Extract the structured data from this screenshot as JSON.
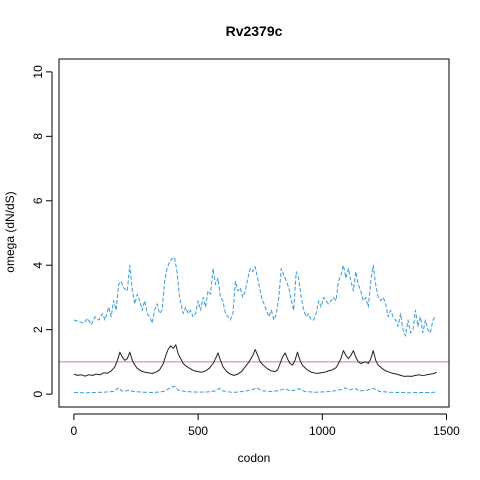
{
  "chart_data": {
    "type": "line",
    "title": "Rv2379c",
    "xlabel": "codon",
    "ylabel": "omega (dN/dS)",
    "xlim": [
      -60,
      1510
    ],
    "ylim": [
      -0.4,
      10.4
    ],
    "xticks": [
      0,
      500,
      1000,
      1500
    ],
    "yticks": [
      0,
      2,
      4,
      6,
      8,
      10
    ],
    "grid": false,
    "legend": "none",
    "reference_line": {
      "y": 1,
      "color": "#cc79a7"
    },
    "series": [
      {
        "style": "dashed",
        "color": "#3a9bd5",
        "points": [
          [
            0,
            2.3
          ],
          [
            20,
            2.25
          ],
          [
            40,
            2.2
          ],
          [
            55,
            2.35
          ],
          [
            70,
            2.15
          ],
          [
            85,
            2.4
          ],
          [
            100,
            2.3
          ],
          [
            115,
            2.5
          ],
          [
            125,
            2.3
          ],
          [
            140,
            2.7
          ],
          [
            150,
            2.4
          ],
          [
            160,
            2.9
          ],
          [
            170,
            2.6
          ],
          [
            180,
            3.4
          ],
          [
            190,
            3.5
          ],
          [
            200,
            3.3
          ],
          [
            215,
            3.2
          ],
          [
            225,
            4.0
          ],
          [
            235,
            3.2
          ],
          [
            245,
            2.8
          ],
          [
            255,
            3.1
          ],
          [
            265,
            2.9
          ],
          [
            275,
            2.6
          ],
          [
            285,
            2.9
          ],
          [
            295,
            2.5
          ],
          [
            305,
            2.4
          ],
          [
            315,
            2.2
          ],
          [
            325,
            2.6
          ],
          [
            335,
            2.8
          ],
          [
            345,
            2.5
          ],
          [
            355,
            2.6
          ],
          [
            365,
            3.5
          ],
          [
            375,
            3.9
          ],
          [
            385,
            4.1
          ],
          [
            395,
            4.2
          ],
          [
            405,
            4.25
          ],
          [
            415,
            3.8
          ],
          [
            425,
            3.0
          ],
          [
            440,
            2.5
          ],
          [
            450,
            2.7
          ],
          [
            460,
            2.5
          ],
          [
            470,
            2.6
          ],
          [
            480,
            2.4
          ],
          [
            490,
            2.5
          ],
          [
            500,
            2.9
          ],
          [
            510,
            2.6
          ],
          [
            520,
            3.0
          ],
          [
            530,
            2.7
          ],
          [
            540,
            3.2
          ],
          [
            550,
            3.1
          ],
          [
            560,
            3.9
          ],
          [
            570,
            3.4
          ],
          [
            580,
            3.6
          ],
          [
            590,
            3.0
          ],
          [
            600,
            2.9
          ],
          [
            610,
            2.5
          ],
          [
            620,
            2.4
          ],
          [
            630,
            2.3
          ],
          [
            640,
            2.5
          ],
          [
            650,
            3.5
          ],
          [
            660,
            3.2
          ],
          [
            670,
            3.3
          ],
          [
            680,
            3.0
          ],
          [
            690,
            3.2
          ],
          [
            700,
            3.6
          ],
          [
            710,
            3.9
          ],
          [
            720,
            3.8
          ],
          [
            730,
            3.95
          ],
          [
            745,
            3.4
          ],
          [
            755,
            3.0
          ],
          [
            770,
            2.7
          ],
          [
            785,
            2.4
          ],
          [
            795,
            2.6
          ],
          [
            805,
            2.3
          ],
          [
            815,
            2.5
          ],
          [
            825,
            3.0
          ],
          [
            835,
            3.9
          ],
          [
            845,
            3.7
          ],
          [
            855,
            3.5
          ],
          [
            865,
            3.3
          ],
          [
            875,
            2.9
          ],
          [
            885,
            2.6
          ],
          [
            895,
            3.8
          ],
          [
            905,
            3.6
          ],
          [
            915,
            3.0
          ],
          [
            925,
            2.6
          ],
          [
            935,
            2.4
          ],
          [
            945,
            2.5
          ],
          [
            955,
            2.3
          ],
          [
            965,
            2.3
          ],
          [
            975,
            2.5
          ],
          [
            985,
            2.9
          ],
          [
            995,
            2.7
          ],
          [
            1005,
            3.0
          ],
          [
            1015,
            2.9
          ],
          [
            1025,
            2.8
          ],
          [
            1035,
            2.9
          ],
          [
            1045,
            3.0
          ],
          [
            1055,
            2.9
          ],
          [
            1065,
            3.5
          ],
          [
            1075,
            3.7
          ],
          [
            1085,
            4.0
          ],
          [
            1095,
            3.6
          ],
          [
            1105,
            3.9
          ],
          [
            1115,
            3.5
          ],
          [
            1125,
            3.2
          ],
          [
            1135,
            3.8
          ],
          [
            1145,
            3.4
          ],
          [
            1155,
            3.2
          ],
          [
            1165,
            2.9
          ],
          [
            1175,
            3.0
          ],
          [
            1185,
            2.7
          ],
          [
            1195,
            3.5
          ],
          [
            1205,
            4.0
          ],
          [
            1215,
            3.4
          ],
          [
            1225,
            3.0
          ],
          [
            1235,
            2.9
          ],
          [
            1245,
            3.0
          ],
          [
            1255,
            2.8
          ],
          [
            1265,
            2.4
          ],
          [
            1275,
            2.6
          ],
          [
            1285,
            2.4
          ],
          [
            1295,
            2.3
          ],
          [
            1305,
            2.1
          ],
          [
            1315,
            2.5
          ],
          [
            1325,
            2.0
          ],
          [
            1335,
            1.8
          ],
          [
            1345,
            2.3
          ],
          [
            1355,
            1.9
          ],
          [
            1365,
            2.0
          ],
          [
            1375,
            2.6
          ],
          [
            1385,
            2.1
          ],
          [
            1395,
            2.4
          ],
          [
            1405,
            1.9
          ],
          [
            1415,
            2.3
          ],
          [
            1425,
            2.0
          ],
          [
            1435,
            1.9
          ],
          [
            1445,
            2.3
          ],
          [
            1455,
            2.4
          ]
        ]
      },
      {
        "style": "solid",
        "color": "#222222",
        "points": [
          [
            0,
            0.62
          ],
          [
            15,
            0.58
          ],
          [
            30,
            0.6
          ],
          [
            45,
            0.56
          ],
          [
            60,
            0.6
          ],
          [
            75,
            0.58
          ],
          [
            90,
            0.62
          ],
          [
            105,
            0.6
          ],
          [
            120,
            0.66
          ],
          [
            135,
            0.65
          ],
          [
            150,
            0.72
          ],
          [
            165,
            0.85
          ],
          [
            175,
            1.05
          ],
          [
            185,
            1.3
          ],
          [
            195,
            1.15
          ],
          [
            205,
            1.05
          ],
          [
            215,
            1.1
          ],
          [
            225,
            1.3
          ],
          [
            235,
            1.05
          ],
          [
            245,
            0.9
          ],
          [
            255,
            0.8
          ],
          [
            270,
            0.72
          ],
          [
            285,
            0.68
          ],
          [
            300,
            0.66
          ],
          [
            315,
            0.64
          ],
          [
            330,
            0.68
          ],
          [
            345,
            0.75
          ],
          [
            360,
            0.95
          ],
          [
            370,
            1.2
          ],
          [
            380,
            1.4
          ],
          [
            390,
            1.5
          ],
          [
            400,
            1.42
          ],
          [
            410,
            1.53
          ],
          [
            420,
            1.25
          ],
          [
            430,
            1.1
          ],
          [
            440,
            0.95
          ],
          [
            455,
            0.85
          ],
          [
            470,
            0.78
          ],
          [
            485,
            0.72
          ],
          [
            500,
            0.7
          ],
          [
            515,
            0.68
          ],
          [
            530,
            0.72
          ],
          [
            545,
            0.8
          ],
          [
            560,
            0.95
          ],
          [
            570,
            1.1
          ],
          [
            580,
            1.28
          ],
          [
            590,
            1.05
          ],
          [
            600,
            0.85
          ],
          [
            615,
            0.7
          ],
          [
            630,
            0.62
          ],
          [
            645,
            0.58
          ],
          [
            660,
            0.62
          ],
          [
            675,
            0.7
          ],
          [
            690,
            0.85
          ],
          [
            705,
            1.0
          ],
          [
            720,
            1.2
          ],
          [
            730,
            1.38
          ],
          [
            740,
            1.2
          ],
          [
            750,
            1.0
          ],
          [
            765,
            0.88
          ],
          [
            780,
            0.78
          ],
          [
            795,
            0.72
          ],
          [
            810,
            0.7
          ],
          [
            820,
            0.75
          ],
          [
            830,
            0.95
          ],
          [
            840,
            1.15
          ],
          [
            850,
            1.28
          ],
          [
            860,
            1.1
          ],
          [
            870,
            0.95
          ],
          [
            880,
            0.9
          ],
          [
            890,
            1.05
          ],
          [
            900,
            1.3
          ],
          [
            910,
            1.05
          ],
          [
            920,
            0.9
          ],
          [
            935,
            0.78
          ],
          [
            950,
            0.7
          ],
          [
            965,
            0.66
          ],
          [
            980,
            0.64
          ],
          [
            995,
            0.66
          ],
          [
            1010,
            0.68
          ],
          [
            1025,
            0.72
          ],
          [
            1040,
            0.75
          ],
          [
            1055,
            0.82
          ],
          [
            1065,
            0.95
          ],
          [
            1075,
            1.1
          ],
          [
            1085,
            1.35
          ],
          [
            1095,
            1.2
          ],
          [
            1105,
            1.1
          ],
          [
            1115,
            1.2
          ],
          [
            1125,
            1.35
          ],
          [
            1135,
            1.15
          ],
          [
            1145,
            1.0
          ],
          [
            1155,
            0.95
          ],
          [
            1165,
            0.98
          ],
          [
            1175,
            1.0
          ],
          [
            1185,
            0.95
          ],
          [
            1195,
            1.1
          ],
          [
            1205,
            1.35
          ],
          [
            1215,
            1.05
          ],
          [
            1225,
            0.9
          ],
          [
            1240,
            0.8
          ],
          [
            1255,
            0.72
          ],
          [
            1270,
            0.68
          ],
          [
            1285,
            0.64
          ],
          [
            1300,
            0.62
          ],
          [
            1315,
            0.58
          ],
          [
            1330,
            0.55
          ],
          [
            1345,
            0.56
          ],
          [
            1360,
            0.55
          ],
          [
            1375,
            0.58
          ],
          [
            1390,
            0.6
          ],
          [
            1405,
            0.57
          ],
          [
            1420,
            0.6
          ],
          [
            1435,
            0.62
          ],
          [
            1450,
            0.64
          ],
          [
            1460,
            0.68
          ]
        ]
      },
      {
        "style": "dashed",
        "color": "#3a9bd5",
        "points": [
          [
            0,
            0.05
          ],
          [
            40,
            0.04
          ],
          [
            80,
            0.05
          ],
          [
            120,
            0.06
          ],
          [
            160,
            0.08
          ],
          [
            180,
            0.2
          ],
          [
            190,
            0.12
          ],
          [
            200,
            0.08
          ],
          [
            220,
            0.12
          ],
          [
            240,
            0.08
          ],
          [
            280,
            0.06
          ],
          [
            320,
            0.05
          ],
          [
            360,
            0.08
          ],
          [
            390,
            0.2
          ],
          [
            405,
            0.25
          ],
          [
            420,
            0.12
          ],
          [
            450,
            0.08
          ],
          [
            500,
            0.06
          ],
          [
            540,
            0.07
          ],
          [
            570,
            0.1
          ],
          [
            585,
            0.18
          ],
          [
            600,
            0.1
          ],
          [
            640,
            0.05
          ],
          [
            680,
            0.08
          ],
          [
            720,
            0.14
          ],
          [
            735,
            0.2
          ],
          [
            760,
            0.1
          ],
          [
            800,
            0.08
          ],
          [
            830,
            0.12
          ],
          [
            850,
            0.17
          ],
          [
            870,
            0.1
          ],
          [
            890,
            0.12
          ],
          [
            905,
            0.17
          ],
          [
            930,
            0.08
          ],
          [
            970,
            0.06
          ],
          [
            1010,
            0.07
          ],
          [
            1050,
            0.1
          ],
          [
            1080,
            0.15
          ],
          [
            1090,
            0.2
          ],
          [
            1110,
            0.13
          ],
          [
            1130,
            0.18
          ],
          [
            1150,
            0.1
          ],
          [
            1180,
            0.12
          ],
          [
            1205,
            0.18
          ],
          [
            1230,
            0.08
          ],
          [
            1270,
            0.06
          ],
          [
            1310,
            0.05
          ],
          [
            1350,
            0.04
          ],
          [
            1390,
            0.05
          ],
          [
            1430,
            0.05
          ],
          [
            1460,
            0.06
          ]
        ]
      }
    ]
  }
}
